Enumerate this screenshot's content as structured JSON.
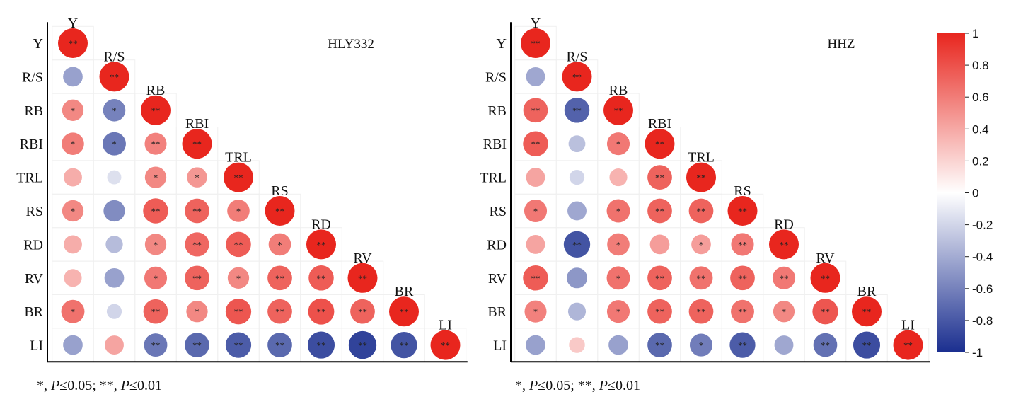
{
  "chart_data": {
    "type": "heatmap",
    "variables": [
      "Y",
      "R/S",
      "RB",
      "RBI",
      "TRL",
      "RS",
      "RD",
      "RV",
      "BR",
      "LI"
    ],
    "color_scale": {
      "min": -1,
      "max": 1,
      "ticks": [
        "1",
        "0.8",
        "0.6",
        "0.4",
        "0.2",
        "0",
        "-0.2",
        "-0.4",
        "-0.6",
        "-0.8",
        "-1"
      ],
      "colors": {
        "negative": "#1a2e8f",
        "zero": "#ffffff",
        "positive": "#e8261e"
      }
    },
    "panels": [
      {
        "title": "HLY332",
        "lower_triangle": [
          [
            1
          ],
          [
            -0.45,
            1
          ],
          [
            0.55,
            -0.6,
            1
          ],
          [
            0.6,
            -0.65,
            0.58,
            1
          ],
          [
            0.38,
            -0.15,
            0.55,
            0.48,
            1
          ],
          [
            0.55,
            -0.55,
            0.75,
            0.72,
            0.6,
            1
          ],
          [
            0.38,
            -0.32,
            0.55,
            0.7,
            0.75,
            0.6,
            1
          ],
          [
            0.35,
            -0.45,
            0.62,
            0.72,
            0.55,
            0.72,
            0.75,
            1
          ],
          [
            0.65,
            -0.2,
            0.72,
            0.55,
            0.78,
            0.72,
            0.8,
            0.72,
            1
          ],
          [
            -0.45,
            0.42,
            -0.65,
            -0.72,
            -0.78,
            -0.72,
            -0.85,
            -0.9,
            -0.82,
            1
          ]
        ],
        "significance": [
          [
            "**"
          ],
          [
            "",
            "**"
          ],
          [
            "*",
            "*",
            "**"
          ],
          [
            "*",
            "*",
            "**",
            "**"
          ],
          [
            "",
            "",
            "*",
            "*",
            "**"
          ],
          [
            "*",
            "",
            "**",
            "**",
            "*",
            "**"
          ],
          [
            "",
            "",
            "*",
            "**",
            "**",
            "*",
            "**"
          ],
          [
            "",
            "",
            "*",
            "**",
            "*",
            "**",
            "**",
            "**"
          ],
          [
            "*",
            "",
            "**",
            "*",
            "**",
            "**",
            "**",
            "**",
            "**"
          ],
          [
            "",
            "",
            "**",
            "**",
            "**",
            "**",
            "**",
            "**",
            "**",
            "**"
          ]
        ],
        "footnote": {
          "sig1_sym": "*,",
          "sig1_var": "P",
          "sig1_val": "≤0.05;",
          "sig2_sym": "**,",
          "sig2_var": "P",
          "sig2_val": "≤0.01"
        }
      },
      {
        "title": "HHZ",
        "lower_triangle": [
          [
            1
          ],
          [
            -0.42,
            1
          ],
          [
            0.72,
            -0.75,
            1
          ],
          [
            0.75,
            -0.3,
            0.62,
            1
          ],
          [
            0.42,
            -0.2,
            0.35,
            0.72,
            1
          ],
          [
            0.62,
            -0.42,
            0.65,
            0.72,
            0.72,
            1
          ],
          [
            0.42,
            -0.82,
            0.6,
            0.45,
            0.45,
            0.62,
            1
          ],
          [
            0.75,
            -0.5,
            0.65,
            0.72,
            0.65,
            0.72,
            0.62,
            1
          ],
          [
            0.58,
            -0.35,
            0.62,
            0.72,
            0.72,
            0.65,
            0.55,
            0.78,
            1
          ],
          [
            -0.45,
            0.25,
            -0.45,
            -0.72,
            -0.62,
            -0.78,
            -0.42,
            -0.68,
            -0.85,
            1
          ]
        ],
        "significance": [
          [
            "**"
          ],
          [
            "",
            "**"
          ],
          [
            "**",
            "**",
            "**"
          ],
          [
            "**",
            "",
            "*",
            "**"
          ],
          [
            "",
            "",
            "",
            "**",
            "**"
          ],
          [
            "*",
            "",
            "*",
            "**",
            "**",
            "**"
          ],
          [
            "",
            "**",
            "*",
            "",
            "*",
            "**",
            "**"
          ],
          [
            "**",
            "",
            "*",
            "**",
            "**",
            "**",
            "**",
            "**"
          ],
          [
            "*",
            "",
            "*",
            "**",
            "**",
            "**",
            "*",
            "**",
            "**"
          ],
          [
            "",
            "",
            "",
            "**",
            "*",
            "**",
            "",
            "**",
            "**",
            "**"
          ]
        ],
        "footnote": {
          "sig1_sym": "*,",
          "sig1_var": "P",
          "sig1_val": "≤0.05;",
          "sig2_sym": "**,",
          "sig2_var": "P",
          "sig2_val": "≤0.01"
        }
      }
    ]
  }
}
